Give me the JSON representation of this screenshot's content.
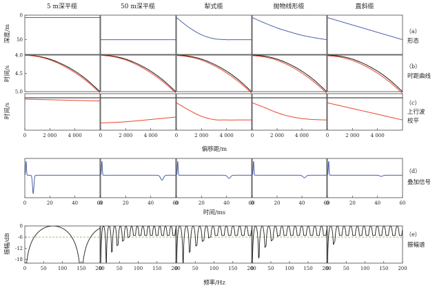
{
  "column_titles": [
    "5 m深平缆",
    "50 m深平缆",
    "犁式缆",
    "抛物线形缆",
    "直斜缆"
  ],
  "rows": [
    {
      "letter": "（a）",
      "name": [
        "形态"
      ],
      "ylabel": "深度/m"
    },
    {
      "letter": "（b）",
      "name": [
        "时距曲线"
      ],
      "ylabel": "时间/s"
    },
    {
      "letter": "（c）",
      "name": [
        "上行波",
        "校平"
      ],
      "ylabel": "时间/s"
    },
    {
      "letter": "（d）",
      "name": [
        "叠加信号"
      ],
      "ylabel": ""
    },
    {
      "letter": "（e）",
      "name": [
        "振幅谱"
      ],
      "ylabel": "振幅/dB"
    }
  ],
  "xlabels": {
    "offset": "偏移距/m",
    "time": "时间/ms",
    "frequency": "频率/Hz"
  },
  "colors": {
    "blue": "#4a5fa8",
    "red": "#e8452a",
    "black": "#1a1a1a",
    "dash": "#b5a54a",
    "frame": "#444444"
  },
  "chart_data": [
    {
      "type": "line",
      "row": "a",
      "xlim": [
        0,
        6000
      ],
      "ylim": [
        80,
        0
      ],
      "yticks": [
        "0",
        "50"
      ],
      "ytick_values": [
        0,
        50
      ],
      "series_by_column": [
        {
          "x": [
            0,
            6000
          ],
          "y": [
            5,
            5
          ]
        },
        {
          "x": [
            0,
            6000
          ],
          "y": [
            50,
            50
          ]
        },
        {
          "x": [
            0,
            1000,
            2000,
            3000,
            4000,
            4500,
            6000
          ],
          "y": [
            5,
            25,
            40,
            48,
            50,
            50,
            50
          ]
        },
        {
          "x": [
            0,
            1000,
            2000,
            3000,
            4000,
            5000,
            6000
          ],
          "y": [
            5,
            16,
            26,
            34,
            41,
            46,
            50
          ]
        },
        {
          "x": [
            0,
            6000
          ],
          "y": [
            5,
            50
          ]
        }
      ]
    },
    {
      "type": "line",
      "row": "b",
      "xlim": [
        0,
        6000
      ],
      "ylim": [
        5.0,
        4.0
      ],
      "yticks": [
        "4.0",
        "4.5",
        "5.0"
      ],
      "ytick_values": [
        4.0,
        4.5,
        5.0
      ],
      "series": [
        {
          "color": "black",
          "x": [
            0,
            1000,
            2000,
            3000,
            4000,
            5000,
            6000
          ],
          "y": [
            4.0,
            4.03,
            4.11,
            4.25,
            4.44,
            4.69,
            5.0
          ]
        },
        {
          "color": "red",
          "x": [
            0,
            1000,
            2000,
            3000,
            4000,
            5000,
            6000
          ],
          "y": [
            4.0,
            4.04,
            4.13,
            4.28,
            4.48,
            4.73,
            5.03
          ]
        }
      ]
    },
    {
      "type": "line",
      "row": "c",
      "xlim": [
        0,
        6000
      ],
      "xticks": [
        "0",
        "2 000",
        "4 000"
      ],
      "xtick_values": [
        0,
        2000,
        4000
      ],
      "series_by_column": [
        {
          "x": [
            0,
            6000
          ],
          "y": [
            0.15,
            0.2
          ]
        },
        {
          "x": [
            0,
            1500,
            3000,
            4500,
            6000
          ],
          "y": [
            0.8,
            0.78,
            0.74,
            0.69,
            0.64
          ]
        },
        {
          "x": [
            0,
            1000,
            2000,
            3000,
            4000,
            5000,
            6000
          ],
          "y": [
            0.25,
            0.45,
            0.62,
            0.71,
            0.72,
            0.72,
            0.72
          ]
        },
        {
          "x": [
            0,
            1000,
            2000,
            3000,
            4000,
            5000,
            6000
          ],
          "y": [
            0.25,
            0.38,
            0.52,
            0.62,
            0.68,
            0.71,
            0.72
          ]
        },
        {
          "x": [
            0,
            6000
          ],
          "y": [
            0.25,
            0.72
          ]
        }
      ]
    },
    {
      "type": "line",
      "row": "d",
      "xlim": [
        0,
        60
      ],
      "ylim": [
        -1.6,
        1.2
      ],
      "xticks": [
        "0",
        "20",
        "40",
        "60"
      ],
      "xtick_values": [
        0,
        20,
        40,
        60
      ],
      "series_by_column": [
        {
          "ghost_ms": 6.7,
          "ghost_amp": -1.3
        },
        {
          "ghost_ms": 49,
          "ghost_amp": -0.35
        },
        {
          "ghost_ms": 42,
          "ghost_amp": -0.22
        },
        {
          "ghost_ms": 42,
          "ghost_amp": -0.18
        },
        {
          "ghost_ms": 43,
          "ghost_amp": -0.08
        }
      ]
    },
    {
      "type": "line",
      "row": "e",
      "xlim": [
        0,
        200
      ],
      "ylim": [
        -20,
        0
      ],
      "yticks": [
        "0",
        "-6",
        "-12",
        "-18"
      ],
      "ytick_values": [
        0,
        -6,
        -12,
        -18
      ],
      "xticks": [
        "0",
        "50",
        "100",
        "150",
        "200"
      ],
      "xtick_values": [
        0,
        50,
        100,
        150,
        200
      ],
      "reference_line_db": -6,
      "series_by_column": [
        {
          "notch_spacing_hz": 150,
          "damping": 0
        },
        {
          "notch_spacing_hz": 15,
          "damping": 0.012
        },
        {
          "notch_spacing_hz": 17.7,
          "damping": 0.01
        },
        {
          "notch_spacing_hz": 17.7,
          "damping": 0.014
        },
        {
          "notch_spacing_hz": 17.7,
          "damping": 0.035
        }
      ]
    }
  ]
}
